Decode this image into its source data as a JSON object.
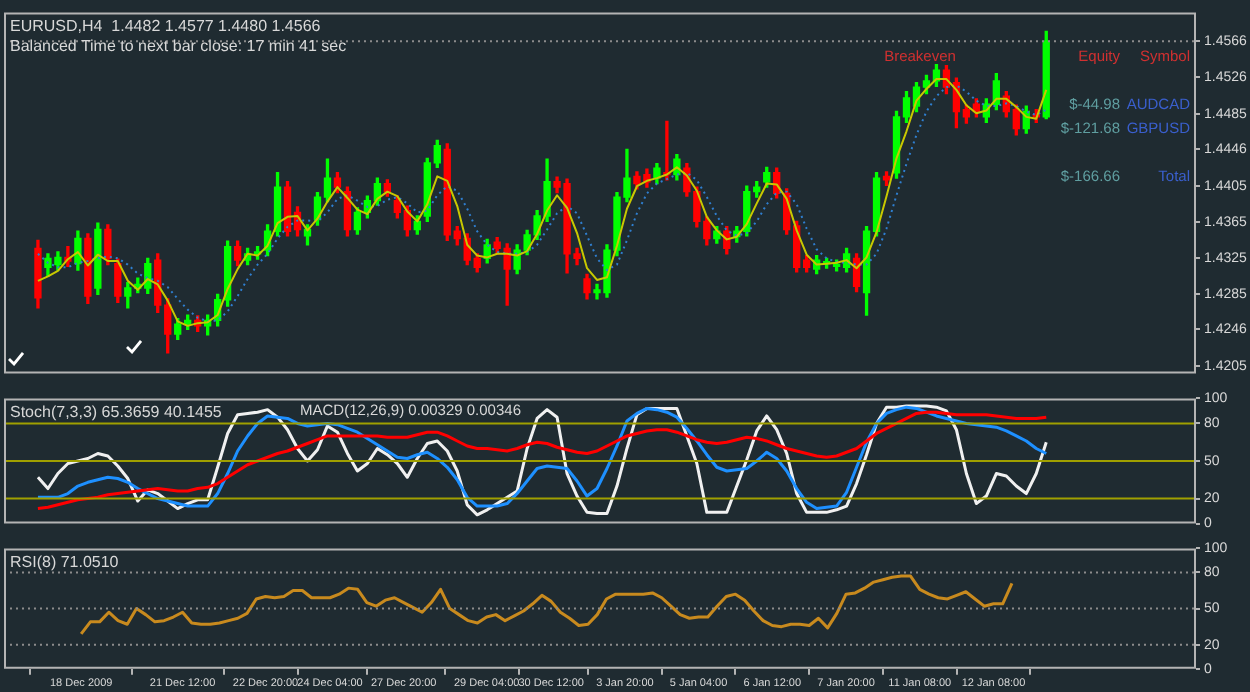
{
  "chart_data": [
    {
      "type": "candlestick",
      "title": "EURUSD,H4  1.4482 1.4577 1.4480 1.4566",
      "subtitle": "Balanced Time to next bar close: 17 min 41 sec",
      "categories": [
        null,
        null,
        null,
        null,
        null,
        null,
        null,
        null,
        null,
        null,
        null,
        null,
        null,
        null,
        null,
        null,
        null,
        null,
        null,
        null,
        null,
        null,
        null,
        null,
        null,
        null,
        null,
        null,
        null,
        null,
        null,
        null,
        null,
        null,
        null,
        null,
        null,
        null,
        null,
        null,
        null,
        null,
        null,
        null,
        null,
        null,
        null,
        null,
        null,
        null,
        null,
        null,
        null,
        null,
        null,
        null,
        null,
        null,
        null,
        null,
        null,
        null,
        null,
        null,
        null,
        null,
        null,
        null,
        null,
        null,
        null,
        null,
        null,
        null,
        null,
        null,
        null,
        null,
        null,
        null,
        null,
        null,
        null,
        null,
        null,
        null,
        null,
        null,
        null,
        null,
        null,
        null,
        null,
        null,
        null,
        null,
        null,
        null,
        null,
        null,
        null,
        null
      ],
      "ohlc": [
        [
          1.4336,
          1.4345,
          1.427,
          1.4281
        ],
        [
          1.4315,
          1.433,
          1.4305,
          1.4325
        ],
        [
          1.4318,
          1.4332,
          1.4312,
          1.4326
        ],
        [
          1.4326,
          1.4338,
          1.4316,
          1.4322
        ],
        [
          1.4319,
          1.4355,
          1.4312,
          1.4347
        ],
        [
          1.4347,
          1.4352,
          1.4275,
          1.4283
        ],
        [
          1.4292,
          1.4364,
          1.4285,
          1.4357
        ],
        [
          1.4357,
          1.4362,
          1.4318,
          1.4325
        ],
        [
          1.4319,
          1.4324,
          1.4276,
          1.4283
        ],
        [
          1.4283,
          1.4298,
          1.427,
          1.4292
        ],
        [
          1.4292,
          1.4303,
          1.4287,
          1.4296
        ],
        [
          1.4292,
          1.4325,
          1.4286,
          1.4319
        ],
        [
          1.4323,
          1.433,
          1.4265,
          1.4273
        ],
        [
          1.4273,
          1.428,
          1.422,
          1.4241
        ],
        [
          1.4241,
          1.4258,
          1.4235,
          1.4252
        ],
        [
          1.4252,
          1.4262,
          1.4246,
          1.4256
        ],
        [
          1.4256,
          1.4261,
          1.4244,
          1.425
        ],
        [
          1.425,
          1.4262,
          1.424,
          1.4256
        ],
        [
          1.4256,
          1.4285,
          1.425,
          1.4279
        ],
        [
          1.4279,
          1.4344,
          1.4272,
          1.4338
        ],
        [
          1.4338,
          1.4344,
          1.4317,
          1.4323
        ],
        [
          1.4323,
          1.4336,
          1.4318,
          1.433
        ],
        [
          1.433,
          1.4338,
          1.4324,
          1.4332
        ],
        [
          1.4334,
          1.4362,
          1.4328,
          1.4355
        ],
        [
          1.4355,
          1.442,
          1.435,
          1.4404
        ],
        [
          1.4404,
          1.441,
          1.435,
          1.4355
        ],
        [
          1.4376,
          1.4382,
          1.435,
          1.4357
        ],
        [
          1.435,
          1.4362,
          1.434,
          1.4357
        ],
        [
          1.4368,
          1.4398,
          1.4362,
          1.4393
        ],
        [
          1.4393,
          1.4435,
          1.4388,
          1.4414
        ],
        [
          1.4414,
          1.442,
          1.4398,
          1.4404
        ],
        [
          1.4399,
          1.4404,
          1.435,
          1.4357
        ],
        [
          1.4357,
          1.4381,
          1.4352,
          1.4376
        ],
        [
          1.4376,
          1.4394,
          1.437,
          1.4389
        ],
        [
          1.4389,
          1.4414,
          1.4384,
          1.4408
        ],
        [
          1.4408,
          1.4412,
          1.4394,
          1.4399
        ],
        [
          1.4389,
          1.4394,
          1.437,
          1.4376
        ],
        [
          1.4378,
          1.4383,
          1.435,
          1.4357
        ],
        [
          1.4357,
          1.4372,
          1.4352,
          1.4366
        ],
        [
          1.4372,
          1.4436,
          1.4366,
          1.4431
        ],
        [
          1.4431,
          1.4456,
          1.4426,
          1.445
        ],
        [
          1.4446,
          1.4452,
          1.4345,
          1.4351
        ],
        [
          1.4355,
          1.436,
          1.434,
          1.4347
        ],
        [
          1.4347,
          1.4352,
          1.4318,
          1.4323
        ],
        [
          1.4325,
          1.433,
          1.431,
          1.4315
        ],
        [
          1.4325,
          1.4346,
          1.432,
          1.434
        ],
        [
          1.4343,
          1.4348,
          1.433,
          1.4336
        ],
        [
          1.4336,
          1.4341,
          1.4273,
          1.4313
        ],
        [
          1.4313,
          1.434,
          1.4308,
          1.4334
        ],
        [
          1.4334,
          1.4356,
          1.4329,
          1.4351
        ],
        [
          1.4351,
          1.4378,
          1.4346,
          1.4372
        ],
        [
          1.4372,
          1.4435,
          1.4366,
          1.441
        ],
        [
          1.441,
          1.4415,
          1.4398,
          1.4404
        ],
        [
          1.4408,
          1.4413,
          1.4309,
          1.433
        ],
        [
          1.433,
          1.4336,
          1.4318,
          1.4325
        ],
        [
          1.4302,
          1.4307,
          1.428,
          1.4287
        ],
        [
          1.4287,
          1.4296,
          1.428,
          1.429
        ],
        [
          1.4287,
          1.434,
          1.4282,
          1.4334
        ],
        [
          1.4334,
          1.4398,
          1.4328,
          1.4393
        ],
        [
          1.4393,
          1.4446,
          1.4388,
          1.4414
        ],
        [
          1.4416,
          1.4421,
          1.4402,
          1.4408
        ],
        [
          1.4418,
          1.4424,
          1.4404,
          1.441
        ],
        [
          1.4414,
          1.443,
          1.4408,
          1.4425
        ],
        [
          1.442,
          1.4477,
          1.4412,
          1.4418
        ],
        [
          1.4418,
          1.444,
          1.4412,
          1.4435
        ],
        [
          1.4425,
          1.443,
          1.4394,
          1.4399
        ],
        [
          1.4399,
          1.4404,
          1.436,
          1.4366
        ],
        [
          1.4366,
          1.4371,
          1.434,
          1.4347
        ],
        [
          1.4347,
          1.436,
          1.4342,
          1.4355
        ],
        [
          1.4355,
          1.436,
          1.433,
          1.4336
        ],
        [
          1.4349,
          1.436,
          1.4343,
          1.4355
        ],
        [
          1.4355,
          1.4405,
          1.435,
          1.4399
        ],
        [
          1.4399,
          1.441,
          1.4393,
          1.4404
        ],
        [
          1.441,
          1.4426,
          1.4404,
          1.442
        ],
        [
          1.442,
          1.4425,
          1.4392,
          1.4397
        ],
        [
          1.4397,
          1.4402,
          1.4352,
          1.4357
        ],
        [
          1.4361,
          1.4366,
          1.431,
          1.4315
        ],
        [
          1.4323,
          1.4328,
          1.431,
          1.4315
        ],
        [
          1.4313,
          1.4328,
          1.4308,
          1.4323
        ],
        [
          1.4319,
          1.4325,
          1.4314,
          1.432
        ],
        [
          1.4316,
          1.4323,
          1.4311,
          1.4318
        ],
        [
          1.4315,
          1.4336,
          1.431,
          1.433
        ],
        [
          1.4325,
          1.433,
          1.4288,
          1.4294
        ],
        [
          1.4287,
          1.436,
          1.4262,
          1.4355
        ],
        [
          1.4355,
          1.442,
          1.435,
          1.4414
        ],
        [
          1.4416,
          1.4421,
          1.4406,
          1.4412
        ],
        [
          1.442,
          1.4488,
          1.4414,
          1.4482
        ],
        [
          1.4482,
          1.451,
          1.4476,
          1.4503
        ],
        [
          1.4494,
          1.452,
          1.4488,
          1.4515
        ],
        [
          1.4515,
          1.4528,
          1.4508,
          1.4522
        ],
        [
          1.4522,
          1.454,
          1.4516,
          1.4534
        ],
        [
          1.4534,
          1.4539,
          1.4508,
          1.4515
        ],
        [
          1.452,
          1.4525,
          1.447,
          1.4488
        ],
        [
          1.449,
          1.4495,
          1.4475,
          1.4482
        ],
        [
          1.4496,
          1.4502,
          1.4482,
          1.4488
        ],
        [
          1.4482,
          1.4502,
          1.4476,
          1.4496
        ],
        [
          1.4496,
          1.453,
          1.449,
          1.4522
        ],
        [
          1.4505,
          1.451,
          1.4482,
          1.4488
        ],
        [
          1.449,
          1.4495,
          1.4462,
          1.4469
        ],
        [
          1.4469,
          1.4494,
          1.4464,
          1.4488
        ],
        [
          1.4484,
          1.449,
          1.4476,
          1.4482
        ],
        [
          1.4482,
          1.4577,
          1.448,
          1.4566
        ]
      ],
      "colors": [
        "#ff0000",
        "#00ff00",
        "#00ff00",
        "#ff0000",
        "#00ff00",
        "#ff0000",
        "#00ff00",
        "#ff0000",
        "#ff0000",
        "#00ff00",
        "#00ff00",
        "#00ff00",
        "#ff0000",
        "#ff0000",
        "#00ff00",
        "#00ff00",
        "#ff0000",
        "#00ff00",
        "#00ff00",
        "#00ff00",
        "#ff0000",
        "#00ff00",
        "#00ff00",
        "#00ff00",
        "#00ff00",
        "#ff0000",
        "#ff0000",
        "#00ff00",
        "#00ff00",
        "#00ff00",
        "#ff0000",
        "#ff0000",
        "#00ff00",
        "#00ff00",
        "#00ff00",
        "#ff0000",
        "#ff0000",
        "#ff0000",
        "#00ff00",
        "#00ff00",
        "#00ff00",
        "#ff0000",
        "#ff0000",
        "#ff0000",
        "#ff0000",
        "#00ff00",
        "#ff0000",
        "#ff0000",
        "#00ff00",
        "#00ff00",
        "#00ff00",
        "#00ff00",
        "#ff0000",
        "#ff0000",
        "#ff0000",
        "#ff0000",
        "#00ff00",
        "#00ff00",
        "#00ff00",
        "#00ff00",
        "#ff0000",
        "#ff0000",
        "#00ff00",
        "#ff0000",
        "#00ff00",
        "#ff0000",
        "#ff0000",
        "#ff0000",
        "#00ff00",
        "#ff0000",
        "#00ff00",
        "#00ff00",
        "#00ff00",
        "#00ff00",
        "#ff0000",
        "#ff0000",
        "#ff0000",
        "#ff0000",
        "#00ff00",
        "#00ff00",
        "#00ff00",
        "#00ff00",
        "#ff0000",
        "#00ff00",
        "#00ff00",
        "#ff0000",
        "#00ff00",
        "#00ff00",
        "#00ff00",
        "#00ff00",
        "#00ff00",
        "#ff0000",
        "#ff0000",
        "#ff0000",
        "#ff0000",
        "#00ff00",
        "#00ff00",
        "#ff0000",
        "#ff0000",
        "#00ff00",
        "#ff0000",
        "#00ff00"
      ],
      "series": [
        {
          "type": "line",
          "color": "#c8c800",
          "values": [
            1.43,
            1.4305,
            1.4311,
            1.4324,
            1.4332,
            1.4317,
            1.4329,
            1.4322,
            1.4322,
            1.43,
            1.429,
            1.4302,
            1.4296,
            1.4278,
            1.4255,
            1.425,
            1.4253,
            1.4254,
            1.4262,
            1.4291,
            1.4313,
            1.433,
            1.4328,
            1.4339,
            1.4364,
            1.4371,
            1.4372,
            1.4356,
            1.4369,
            1.4388,
            1.4404,
            1.4392,
            1.4379,
            1.4374,
            1.4391,
            1.4399,
            1.4394,
            1.4377,
            1.4366,
            1.4385,
            1.4416,
            1.4411,
            1.4383,
            1.434,
            1.4328,
            1.4326,
            1.433,
            1.433,
            1.4328,
            1.4333,
            1.4352,
            1.4378,
            1.4395,
            1.4381,
            1.4353,
            1.4314,
            1.4301,
            1.4304,
            1.4339,
            1.438,
            1.4405,
            1.4411,
            1.4414,
            1.4418,
            1.4426,
            1.4417,
            1.44,
            1.4371,
            1.4356,
            1.4346,
            1.4349,
            1.4363,
            1.4386,
            1.4408,
            1.4407,
            1.4391,
            1.4356,
            1.4329,
            1.4318,
            1.4319,
            1.432,
            1.4323,
            1.4314,
            1.4326,
            1.4354,
            1.4394,
            1.4436,
            1.4466,
            1.45,
            1.4513,
            1.4524,
            1.4524,
            1.4512,
            1.4495,
            1.4486,
            1.4489,
            1.4502,
            1.4502,
            1.4493,
            1.4482,
            1.448,
            1.4512
          ]
        },
        {
          "type": "line",
          "color": "#2f7fd0",
          "line_style": "dotted",
          "values": [
            1.433,
            1.432,
            1.4315,
            1.4315,
            1.432,
            1.4322,
            1.4325,
            1.4327,
            1.4325,
            1.4318,
            1.4308,
            1.4303,
            1.43,
            1.4293,
            1.428,
            1.4268,
            1.4259,
            1.4255,
            1.4256,
            1.4266,
            1.4283,
            1.4302,
            1.4318,
            1.433,
            1.4347,
            1.436,
            1.4367,
            1.4367,
            1.4366,
            1.4376,
            1.4391,
            1.4395,
            1.4389,
            1.4382,
            1.4383,
            1.439,
            1.4393,
            1.4386,
            1.4376,
            1.4378,
            1.4395,
            1.4405,
            1.44,
            1.438,
            1.4355,
            1.434,
            1.4332,
            1.433,
            1.433,
            1.4332,
            1.434,
            1.4357,
            1.4375,
            1.4383,
            1.4375,
            1.435,
            1.4325,
            1.4312,
            1.4318,
            1.4345,
            1.4375,
            1.4397,
            1.4408,
            1.4413,
            1.4418,
            1.442,
            1.4412,
            1.4393,
            1.4372,
            1.4356,
            1.435,
            1.4353,
            1.4366,
            1.4385,
            1.4398,
            1.4399,
            1.4385,
            1.4358,
            1.4335,
            1.4325,
            1.4321,
            1.432,
            1.4318,
            1.4318,
            1.433,
            1.4358,
            1.4395,
            1.443,
            1.4462,
            1.4488,
            1.4505,
            1.4515,
            1.4517,
            1.451,
            1.45,
            1.4494,
            1.4494,
            1.4497,
            1.4494,
            1.4488,
            1.4484,
            1.449
          ]
        }
      ],
      "ylim": [
        1.4197,
        1.4598
      ],
      "yticks": [
        1.4205,
        1.4246,
        1.4285,
        1.4325,
        1.4365,
        1.4405,
        1.4446,
        1.4485,
        1.4526,
        1.4566
      ],
      "ref_lines": [
        {
          "axis": "y",
          "value": 1.4566,
          "color": "#8c8c8c",
          "line_style": "dotted"
        }
      ],
      "annotations": [
        "Breakeven",
        "Equity",
        "Symbol",
        "$-44.98",
        "AUDCAD",
        "$-121.68",
        "GBPUSD",
        "$-166.66",
        "Total"
      ],
      "tick_labels": "y"
    },
    {
      "type": "line",
      "title": "Stoch(7,3,3) 65.3659 40.1455",
      "categories": [
        null,
        null,
        null,
        null,
        null,
        null,
        null,
        null,
        null,
        null,
        null,
        null,
        null,
        null,
        null,
        null,
        null,
        null,
        null,
        null,
        null,
        null,
        null,
        null,
        null,
        null,
        null,
        null,
        null,
        null,
        null,
        null,
        null,
        null,
        null,
        null,
        null,
        null,
        null,
        null,
        null,
        null,
        null,
        null,
        null,
        null,
        null,
        null,
        null,
        null,
        null,
        null,
        null,
        null,
        null,
        null,
        null,
        null,
        null,
        null,
        null,
        null,
        null,
        null,
        null,
        null,
        null,
        null,
        null,
        null,
        null,
        null,
        null,
        null,
        null,
        null,
        null,
        null,
        null,
        null,
        null,
        null,
        null,
        null,
        null,
        null,
        null,
        null,
        null,
        null,
        null,
        null,
        null,
        null,
        null,
        null,
        null,
        null,
        null,
        null,
        null,
        null
      ],
      "series": [
        {
          "color": "#ff0000",
          "values": [
            12,
            13,
            15,
            17,
            19,
            20,
            21,
            23,
            24,
            25,
            26,
            27,
            28,
            27,
            26,
            26,
            28,
            29,
            32,
            37,
            42,
            47,
            50,
            53,
            56,
            58,
            61,
            64,
            67,
            70,
            70,
            70,
            70,
            70,
            70,
            69,
            69,
            69,
            71,
            73,
            73,
            70,
            66,
            62,
            60,
            60,
            59,
            58,
            60,
            63,
            65,
            64,
            61,
            59,
            57,
            56,
            58,
            62,
            66,
            70,
            72,
            74,
            75,
            75,
            73,
            70,
            67,
            65,
            64,
            65,
            67,
            69,
            68,
            66,
            63,
            60,
            58,
            56,
            54,
            53,
            54,
            57,
            60,
            66,
            72,
            76,
            80,
            84,
            88,
            89,
            89,
            88,
            87,
            87,
            87,
            87,
            86,
            85,
            84,
            84,
            84,
            85
          ]
        },
        {
          "color": "#1e90ff",
          "values": [
            21,
            21,
            21,
            24,
            30,
            33,
            35,
            37,
            36,
            33,
            28,
            24,
            20,
            18,
            16,
            14,
            14,
            14,
            24,
            40,
            58,
            70,
            80,
            86,
            85,
            84,
            80,
            78,
            79,
            80,
            79,
            76,
            73,
            68,
            63,
            58,
            53,
            52,
            55,
            57,
            52,
            45,
            35,
            21,
            14,
            14,
            14,
            16,
            24,
            34,
            44,
            46,
            45,
            44,
            34,
            22,
            28,
            44,
            62,
            82,
            88,
            92,
            91,
            89,
            85,
            76,
            66,
            55,
            45,
            42,
            43,
            44,
            50,
            57,
            52,
            42,
            28,
            17,
            12,
            13,
            14,
            25,
            45,
            65,
            80,
            88,
            91,
            93,
            92,
            89,
            86,
            84,
            82,
            80,
            79,
            78,
            77,
            74,
            70,
            66,
            60,
            56
          ]
        },
        {
          "color": "#f0f0f0",
          "values": [
            37,
            28,
            40,
            48,
            50,
            52,
            56,
            54,
            46,
            36,
            18,
            27,
            24,
            18,
            12,
            16,
            19,
            19,
            45,
            72,
            87,
            88,
            89,
            91,
            85,
            75,
            60,
            50,
            59,
            78,
            73,
            56,
            42,
            48,
            60,
            55,
            48,
            37,
            52,
            64,
            66,
            58,
            42,
            15,
            7,
            11,
            16,
            21,
            26,
            60,
            84,
            91,
            85,
            40,
            22,
            9,
            8,
            8,
            30,
            60,
            87,
            92,
            92,
            92,
            92,
            70,
            48,
            9,
            9,
            9,
            30,
            51,
            74,
            86,
            75,
            56,
            24,
            9,
            9,
            9,
            11,
            14,
            32,
            55,
            80,
            93,
            93,
            94,
            94,
            94,
            93,
            90,
            75,
            40,
            16,
            22,
            40,
            38,
            30,
            24,
            40,
            65
          ]
        }
      ],
      "ylim": [
        0,
        100
      ],
      "yticks": [
        0,
        20,
        50,
        80,
        100
      ],
      "ref_lines": [
        {
          "axis": "y",
          "value": 80,
          "color": "#a0a000"
        },
        {
          "axis": "y",
          "value": 50,
          "color": "#a0a000"
        },
        {
          "axis": "y",
          "value": 20,
          "color": "#a0a000"
        }
      ],
      "annotations": [
        "MACD(12,26,9) 0.00329 0.00346"
      ],
      "tick_labels": "y"
    },
    {
      "type": "line",
      "title": "RSI(8) 71.0510",
      "categories": [
        "18 Dec 2009",
        null,
        null,
        null,
        null,
        null,
        null,
        null,
        null,
        null,
        null,
        "21 Dec 12:00",
        null,
        null,
        null,
        null,
        null,
        null,
        null,
        null,
        "22 Dec 20:00",
        null,
        null,
        null,
        null,
        null,
        null,
        "24 Dec 04:00",
        null,
        null,
        null,
        null,
        null,
        null,
        null,
        "27 Dec 20:00",
        null,
        null,
        null,
        null,
        null,
        null,
        null,
        null,
        "29 Dec 04:00",
        null,
        null,
        null,
        null,
        null,
        null,
        "30 Dec 12:00",
        null,
        null,
        null,
        null,
        null,
        null,
        null,
        "3 Jan 20:00",
        null,
        null,
        null,
        null,
        null,
        null,
        null,
        "5 Jan 04:00",
        null,
        null,
        null,
        null,
        null,
        null,
        null,
        "6 Jan 12:00",
        null,
        null,
        null,
        null,
        null,
        null,
        null,
        "7 Jan 20:00",
        null,
        null,
        null,
        null,
        null,
        null,
        null,
        "11 Jan 08:00",
        null,
        null,
        null,
        null,
        null,
        null,
        null,
        "12 Jan 08:00",
        null,
        null
      ],
      "series": [
        {
          "color": "#c88a1e",
          "values": [
            29,
            39,
            39,
            47,
            40,
            37,
            50,
            45,
            39,
            40,
            43,
            47,
            38,
            37,
            37,
            38,
            40,
            42,
            46,
            58,
            60,
            59,
            60,
            65,
            65,
            59,
            59,
            59,
            62,
            67,
            66,
            55,
            52,
            57,
            59,
            55,
            51,
            47,
            55,
            66,
            50,
            45,
            40,
            38,
            43,
            45,
            40,
            44,
            48,
            54,
            61,
            56,
            47,
            42,
            36,
            37,
            45,
            58,
            62,
            62,
            62,
            62,
            63,
            59,
            52,
            45,
            42,
            43,
            43,
            52,
            60,
            62,
            57,
            48,
            40,
            36,
            35,
            37,
            37,
            36,
            42,
            34,
            46,
            62,
            63,
            67,
            72,
            74,
            76,
            77,
            77,
            66,
            62,
            59,
            58,
            61,
            64,
            58,
            52,
            54,
            54,
            71
          ]
        }
      ],
      "ylim": [
        0,
        100
      ],
      "yticks": [
        0,
        20,
        50,
        80,
        100
      ],
      "ref_lines": [
        {
          "axis": "y",
          "value": 80,
          "color": "#8c8c8c",
          "line_style": "dotted"
        },
        {
          "axis": "y",
          "value": 50,
          "color": "#8c8c8c",
          "line_style": "dotted"
        },
        {
          "axis": "y",
          "value": 20,
          "color": "#8c8c8c",
          "line_style": "dotted"
        }
      ]
    }
  ]
}
